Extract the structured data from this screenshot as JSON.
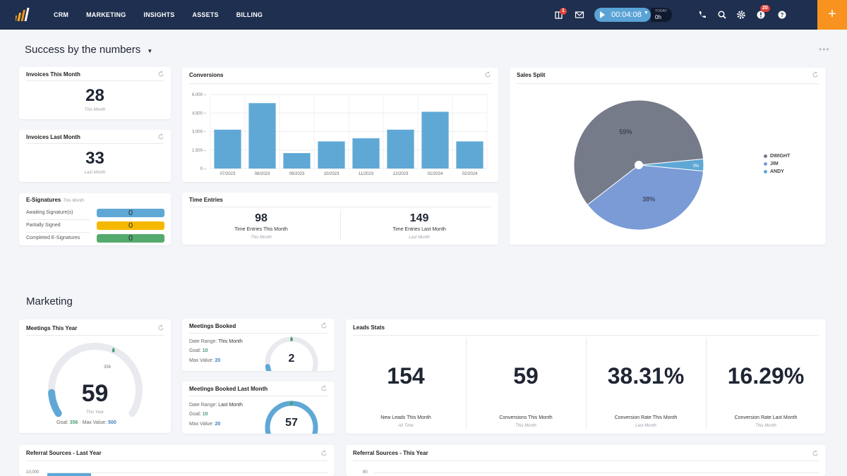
{
  "nav": {
    "menu": [
      "CRM",
      "MARKETING",
      "INSIGHTS",
      "ASSETS",
      "BILLING"
    ],
    "inbox_badge": "1",
    "timer": "00:04:08",
    "today_label": "TODAY:",
    "today_value": "0h",
    "alerts_badge": "20",
    "plus": "+"
  },
  "colors": {
    "nav": "#1e2f4f",
    "accent": "#f7931e",
    "bar": "#5fa8d6",
    "dwight": "#767b8a",
    "jim": "#7a9bd6",
    "andy": "#5fa8d6"
  },
  "success": {
    "title": "Success by the numbers",
    "invoices_this_month": {
      "title": "Invoices This Month",
      "value": "28",
      "caption": "This Month"
    },
    "invoices_last_month": {
      "title": "Invoices Last Month",
      "value": "33",
      "caption": "Last Month"
    },
    "esig": {
      "title": "E-Signatures",
      "sub": "This Month",
      "rows": [
        {
          "label": "Awaiting Signature(s)",
          "value": "0",
          "color": "#5fa8d6"
        },
        {
          "label": "Partially Signed",
          "value": "0",
          "color": "#f5b800"
        },
        {
          "label": "Completed E-Signatures",
          "value": "0",
          "color": "#55aa6d"
        }
      ]
    },
    "conversions": {
      "title": "Conversions"
    },
    "time_entries": {
      "title": "Time Entries",
      "this_month": {
        "value": "98",
        "label": "Time Entries This Month",
        "caption": "This Month"
      },
      "last_month": {
        "value": "149",
        "label": "Time Entries Last Month",
        "caption": "Last Month"
      }
    },
    "sales_split": {
      "title": "Sales Split",
      "slices": [
        {
          "name": "DWIGHT",
          "pct": 59,
          "label": "59%"
        },
        {
          "name": "JIM",
          "pct": 38,
          "label": "38%"
        },
        {
          "name": "ANDY",
          "pct": 3,
          "label": "3%"
        }
      ]
    }
  },
  "marketing": {
    "title": "Marketing",
    "meetings_year": {
      "title": "Meetings This Year",
      "value": "59",
      "marker": "356",
      "caption": "This Year",
      "goal_label": "Goal:",
      "goal": "356",
      "max_label": "Max Value:",
      "max": "500",
      "progress": 0.118
    },
    "meetings_booked": {
      "title": "Meetings Booked",
      "range_label": "Date Range:",
      "range": "This Month",
      "goal_label": "Goal:",
      "goal": "10",
      "max_label": "Max Value:",
      "max": "20",
      "value": "2",
      "progress": 0.1
    },
    "meetings_last": {
      "title": "Meetings Booked Last Month",
      "range_label": "Date Range:",
      "range": "Last Month",
      "goal_label": "Goal:",
      "goal": "10",
      "max_label": "Max Value:",
      "max": "20",
      "value": "57",
      "progress": 1.0
    },
    "leads": {
      "title": "Leads Stats",
      "stats": [
        {
          "value": "154",
          "label": "New Leads This Month",
          "caption": "All Time"
        },
        {
          "value": "59",
          "label": "Conversions This Month",
          "caption": "This Month"
        },
        {
          "value": "38.31%",
          "label": "Conversion Rate This Month",
          "caption": "Last Month"
        },
        {
          "value": "16.29%",
          "label": "Conversion Rate Last Month",
          "caption": "This Month"
        }
      ]
    },
    "referral_last": {
      "title": "Referral Sources - Last Year",
      "tick": "10,000"
    },
    "referral_this": {
      "title": "Referral Sources - This Year",
      "tick": "80"
    }
  },
  "chart_data": {
    "type": "bar",
    "title": "Conversions",
    "categories": [
      "07/2023",
      "08/2023",
      "09/2023",
      "10/2023",
      "11/2023",
      "12/2023",
      "01/2024",
      "02/2024"
    ],
    "values": [
      3150,
      5300,
      1250,
      2200,
      2450,
      3150,
      4600,
      2200
    ],
    "yticks": [
      "6,000",
      "4,500",
      "3,000",
      "1,500",
      "0"
    ],
    "ylim": [
      0,
      6000
    ]
  }
}
